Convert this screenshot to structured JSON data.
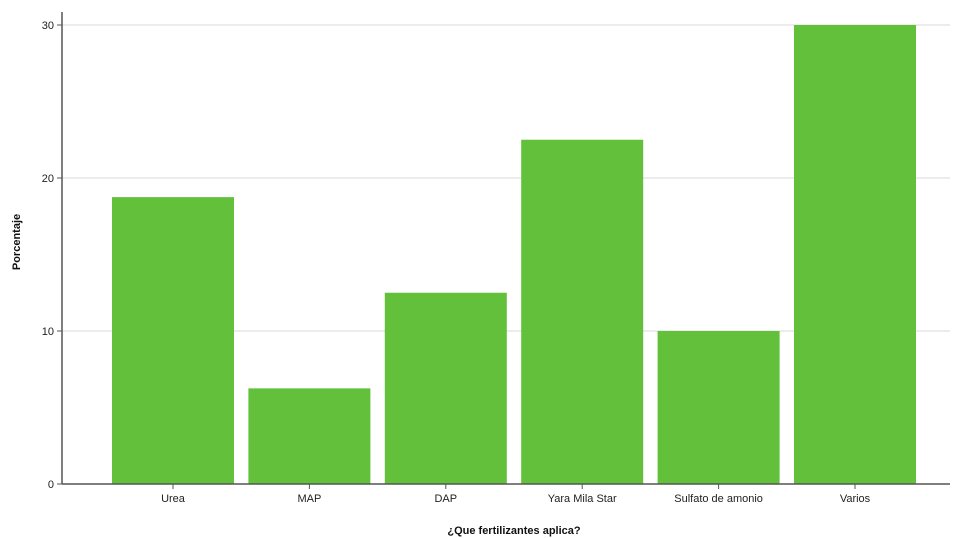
{
  "chart_data": {
    "type": "bar",
    "title": "",
    "xlabel": "¿Que fertilizantes aplica?",
    "ylabel": "Porcentaje",
    "categories": [
      "Urea",
      "MAP",
      "DAP",
      "Yara Mila Star",
      "Sulfato de amonio",
      "Varios"
    ],
    "values": [
      18.75,
      6.25,
      12.5,
      22.5,
      10.0,
      30.0
    ],
    "ylim": [
      0,
      30
    ],
    "yticks": [
      "0",
      "10",
      "20",
      "30"
    ],
    "grid": "horizontal",
    "legend": "none",
    "bar_color": "#62c03a",
    "grid_color": "#d9d9d9",
    "axis_color": "#555555"
  }
}
